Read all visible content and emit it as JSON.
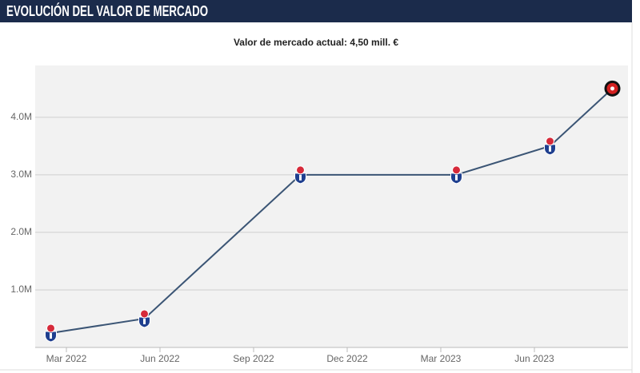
{
  "chart_data": {
    "type": "line",
    "title": "EVOLUCIÓN DEL VALOR DE MERCADO",
    "subtitle": "Valor de mercado actual: 4,50 mill. €",
    "x": [
      "Feb 2022",
      "May 2022",
      "Oct 2022",
      "Mar 2023",
      "Jun 2023",
      "Aug 2023"
    ],
    "values": [
      250000,
      500000,
      3000000,
      3000000,
      3500000,
      4500000
    ],
    "color": "#3b5575",
    "xlim": [
      "Feb 2022",
      "Sep 2023"
    ],
    "xticks": [
      "Mar 2022",
      "Jun 2022",
      "Sep 2022",
      "Dec 2022",
      "Mar 2023",
      "Jun 2023"
    ],
    "ylim": [
      0,
      4900000
    ],
    "yticks": [
      {
        "value": 1000000,
        "label": "1.0M"
      },
      {
        "value": 2000000,
        "label": "2.0M"
      },
      {
        "value": 3000000,
        "label": "3.0M"
      },
      {
        "value": 4000000,
        "label": "4.0M"
      }
    ],
    "grid": true
  }
}
